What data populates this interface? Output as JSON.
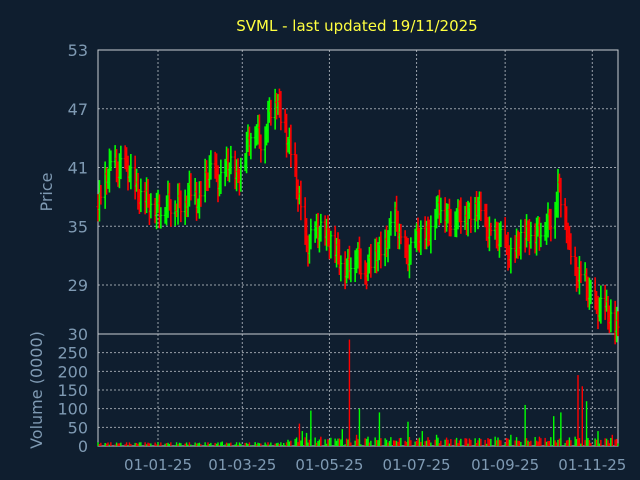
{
  "chart_data": [
    {
      "type": "ohlc",
      "title": "SVML - last updated 19/11/2025",
      "ylabel": "Price",
      "ylim": [
        24,
        53
      ],
      "yticks": [
        53,
        47,
        41,
        35,
        29
      ],
      "xticks": [
        "01-01-25",
        "01-03-25",
        "01-05-25",
        "01-07-25",
        "01-09-25",
        "01-11-25"
      ],
      "up_color": "#00ff00",
      "down_color": "#ff0000",
      "grid": true,
      "close_series": {
        "name": "",
        "points": [
          [
            "2024-11-20",
            37.0
          ],
          [
            "2024-11-25",
            39.0
          ],
          [
            "2024-11-30",
            42.0
          ],
          [
            "2024-12-05",
            41.0
          ],
          [
            "2024-12-10",
            40.5
          ],
          [
            "2024-12-15",
            40.0
          ],
          [
            "2024-12-20",
            38.0
          ],
          [
            "2024-12-25",
            37.0
          ],
          [
            "2024-12-30",
            37.5
          ],
          [
            "2025-01-05",
            36.5
          ],
          [
            "2025-01-10",
            37.0
          ],
          [
            "2025-01-15",
            38.0
          ],
          [
            "2025-01-20",
            37.0
          ],
          [
            "2025-01-25",
            38.5
          ],
          [
            "2025-01-30",
            38.0
          ],
          [
            "2025-02-05",
            40.0
          ],
          [
            "2025-02-10",
            40.5
          ],
          [
            "2025-02-15",
            40.0
          ],
          [
            "2025-02-20",
            41.0
          ],
          [
            "2025-02-25",
            40.0
          ],
          [
            "2025-03-01",
            42.0
          ],
          [
            "2025-03-05",
            43.0
          ],
          [
            "2025-03-10",
            45.0
          ],
          [
            "2025-03-15",
            44.0
          ],
          [
            "2025-03-20",
            46.0
          ],
          [
            "2025-03-25",
            48.0
          ],
          [
            "2025-03-30",
            46.0
          ],
          [
            "2025-04-05",
            41.0
          ],
          [
            "2025-04-10",
            38.0
          ],
          [
            "2025-04-15",
            33.0
          ],
          [
            "2025-04-20",
            33.5
          ],
          [
            "2025-04-25",
            35.0
          ],
          [
            "2025-04-30",
            34.0
          ],
          [
            "2025-05-05",
            32.0
          ],
          [
            "2025-05-10",
            31.5
          ],
          [
            "2025-05-15",
            31.0
          ],
          [
            "2025-05-20",
            31.5
          ],
          [
            "2025-05-25",
            31.0
          ],
          [
            "2025-05-30",
            31.5
          ],
          [
            "2025-06-05",
            32.0
          ],
          [
            "2025-06-10",
            34.0
          ],
          [
            "2025-06-15",
            36.0
          ],
          [
            "2025-06-20",
            33.0
          ],
          [
            "2025-06-25",
            32.5
          ],
          [
            "2025-06-30",
            33.0
          ],
          [
            "2025-07-05",
            34.0
          ],
          [
            "2025-07-10",
            35.0
          ],
          [
            "2025-07-15",
            36.0
          ],
          [
            "2025-07-20",
            37.0
          ],
          [
            "2025-07-25",
            36.0
          ],
          [
            "2025-07-30",
            35.5
          ],
          [
            "2025-08-05",
            36.5
          ],
          [
            "2025-08-10",
            37.0
          ],
          [
            "2025-08-15",
            36.0
          ],
          [
            "2025-08-20",
            35.0
          ],
          [
            "2025-08-25",
            34.0
          ],
          [
            "2025-08-30",
            33.0
          ],
          [
            "2025-09-05",
            32.5
          ],
          [
            "2025-09-10",
            33.0
          ],
          [
            "2025-09-15",
            34.0
          ],
          [
            "2025-09-20",
            35.0
          ],
          [
            "2025-09-25",
            34.0
          ],
          [
            "2025-09-30",
            35.0
          ],
          [
            "2025-10-05",
            37.0
          ],
          [
            "2025-10-08",
            39.0
          ],
          [
            "2025-10-12",
            36.0
          ],
          [
            "2025-10-16",
            33.0
          ],
          [
            "2025-10-20",
            31.0
          ],
          [
            "2025-10-25",
            29.0
          ],
          [
            "2025-10-30",
            28.0
          ],
          [
            "2025-11-05",
            27.0
          ],
          [
            "2025-11-10",
            26.0
          ],
          [
            "2025-11-15",
            25.5
          ],
          [
            "2025-11-19",
            25.0
          ]
        ]
      }
    },
    {
      "type": "bar",
      "ylabel": "Volume (0000)",
      "ylim": [
        0,
        300
      ],
      "yticks": [
        300,
        250,
        200,
        150,
        100,
        50,
        0
      ],
      "series": [
        {
          "name": "",
          "points": [
            [
              "2024-11-25",
              8
            ],
            [
              "2024-12-20",
              10
            ],
            [
              "2025-01-20",
              6
            ],
            [
              "2025-02-15",
              12
            ],
            [
              "2025-03-10",
              10
            ],
            [
              "2025-03-30",
              8
            ],
            [
              "2025-04-10",
              60
            ],
            [
              "2025-04-12",
              40
            ],
            [
              "2025-04-15",
              35
            ],
            [
              "2025-04-18",
              95
            ],
            [
              "2025-04-25",
              25
            ],
            [
              "2025-05-05",
              20
            ],
            [
              "2025-05-10",
              45
            ],
            [
              "2025-05-15",
              285
            ],
            [
              "2025-05-20",
              30
            ],
            [
              "2025-05-22",
              100
            ],
            [
              "2025-05-28",
              25
            ],
            [
              "2025-06-05",
              90
            ],
            [
              "2025-06-15",
              15
            ],
            [
              "2025-06-25",
              65
            ],
            [
              "2025-07-05",
              40
            ],
            [
              "2025-07-15",
              30
            ],
            [
              "2025-08-05",
              20
            ],
            [
              "2025-08-25",
              25
            ],
            [
              "2025-09-05",
              30
            ],
            [
              "2025-09-15",
              110
            ],
            [
              "2025-09-25",
              25
            ],
            [
              "2025-10-05",
              80
            ],
            [
              "2025-10-10",
              90
            ],
            [
              "2025-10-20",
              25
            ],
            [
              "2025-10-22",
              190
            ],
            [
              "2025-10-25",
              160
            ],
            [
              "2025-10-28",
              120
            ],
            [
              "2025-11-05",
              40
            ],
            [
              "2025-11-15",
              30
            ]
          ]
        }
      ]
    }
  ]
}
